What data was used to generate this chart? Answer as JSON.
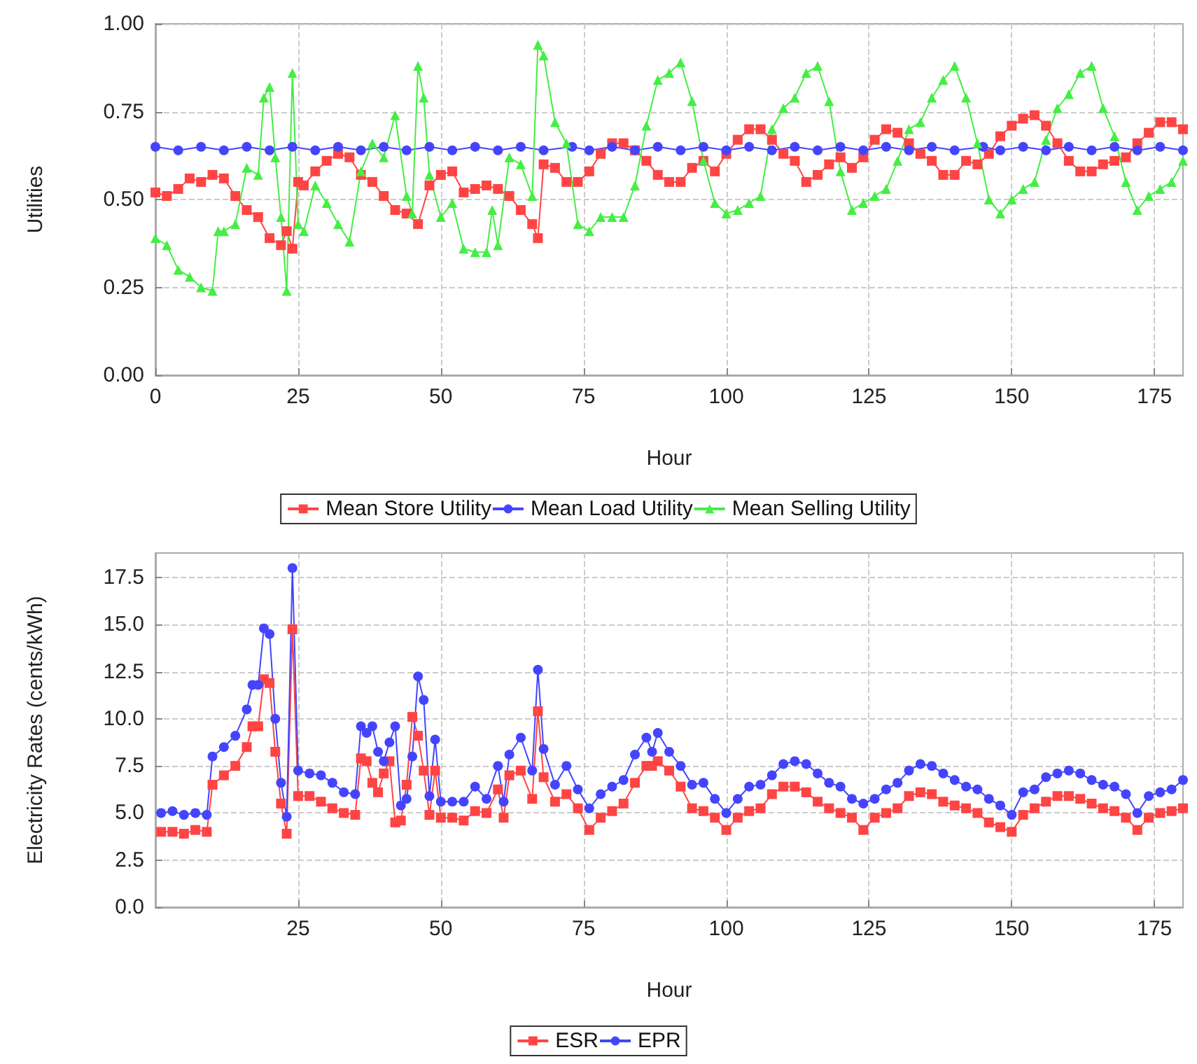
{
  "chart_data": [
    {
      "type": "line",
      "xlabel": "Hour",
      "ylabel": "Utilities",
      "xlim": [
        0,
        180
      ],
      "ylim": [
        0,
        1
      ],
      "xticks": [
        0,
        25,
        50,
        75,
        100,
        125,
        150,
        175
      ],
      "yticks": [
        {
          "value": 0,
          "label": "0.00"
        },
        0.25,
        {
          "value": 0.5,
          "label": "0.50"
        },
        0.75,
        {
          "value": 1,
          "label": "1.00"
        }
      ],
      "grid": true,
      "legend": "bottom",
      "line_style": "solid",
      "series": [
        {
          "name": "Mean Store Utility",
          "color": "#ff4444",
          "marker": "square",
          "x": [
            0,
            2,
            4,
            6,
            8,
            10,
            12,
            14,
            16,
            18,
            20,
            22,
            23,
            24,
            25,
            26,
            28,
            30,
            32,
            34,
            36,
            38,
            40,
            42,
            44,
            46,
            48,
            50,
            52,
            54,
            56,
            58,
            60,
            62,
            64,
            66,
            67,
            68,
            70,
            72,
            74,
            76,
            78,
            80,
            82,
            84,
            86,
            88,
            90,
            92,
            94,
            96,
            98,
            100,
            102,
            104,
            106,
            108,
            110,
            112,
            114,
            116,
            118,
            120,
            122,
            124,
            126,
            128,
            130,
            132,
            134,
            136,
            138,
            140,
            142,
            144,
            146,
            148,
            150,
            152,
            154,
            156,
            158,
            160,
            162,
            164,
            166,
            168,
            170,
            172,
            174,
            176,
            178,
            180
          ],
          "values": [
            0.52,
            0.51,
            0.53,
            0.56,
            0.55,
            0.57,
            0.56,
            0.51,
            0.47,
            0.45,
            0.39,
            0.37,
            0.41,
            0.36,
            0.55,
            0.54,
            0.58,
            0.61,
            0.63,
            0.62,
            0.57,
            0.55,
            0.51,
            0.47,
            0.46,
            0.43,
            0.54,
            0.57,
            0.58,
            0.52,
            0.53,
            0.54,
            0.53,
            0.51,
            0.47,
            0.43,
            0.39,
            0.6,
            0.59,
            0.55,
            0.55,
            0.58,
            0.63,
            0.66,
            0.66,
            0.64,
            0.61,
            0.57,
            0.55,
            0.55,
            0.59,
            0.61,
            0.58,
            0.63,
            0.67,
            0.7,
            0.7,
            0.67,
            0.63,
            0.61,
            0.55,
            0.57,
            0.6,
            0.62,
            0.59,
            0.62,
            0.67,
            0.7,
            0.69,
            0.66,
            0.63,
            0.61,
            0.57,
            0.57,
            0.61,
            0.6,
            0.63,
            0.68,
            0.71,
            0.73,
            0.74,
            0.71,
            0.66,
            0.61,
            0.58,
            0.58,
            0.6,
            0.61,
            0.62,
            0.66,
            0.69,
            0.72,
            0.72,
            0.7
          ]
        },
        {
          "name": "Mean Load Utility",
          "color": "#4444ff",
          "marker": "circle",
          "x": [
            0,
            4,
            8,
            12,
            16,
            20,
            24,
            28,
            32,
            36,
            40,
            44,
            48,
            52,
            56,
            60,
            64,
            68,
            73,
            76,
            80,
            84,
            88,
            92,
            96,
            100,
            104,
            108,
            112,
            116,
            120,
            124,
            128,
            132,
            136,
            140,
            145,
            148,
            152,
            156,
            160,
            164,
            168,
            172,
            176,
            180
          ],
          "values": [
            0.65,
            0.64,
            0.65,
            0.64,
            0.65,
            0.64,
            0.65,
            0.64,
            0.65,
            0.64,
            0.65,
            0.64,
            0.65,
            0.64,
            0.65,
            0.64,
            0.65,
            0.64,
            0.65,
            0.64,
            0.65,
            0.64,
            0.65,
            0.64,
            0.65,
            0.64,
            0.65,
            0.64,
            0.65,
            0.64,
            0.65,
            0.64,
            0.65,
            0.64,
            0.65,
            0.64,
            0.65,
            0.64,
            0.65,
            0.64,
            0.65,
            0.64,
            0.65,
            0.64,
            0.65,
            0.64
          ]
        },
        {
          "name": "Mean Selling Utility",
          "color": "#44ee44",
          "marker": "triangle",
          "x": [
            0,
            2,
            4,
            6,
            8,
            10,
            11,
            12,
            14,
            16,
            18,
            19,
            20,
            21,
            22,
            23,
            24,
            25,
            26,
            28,
            30,
            32,
            34,
            36,
            38,
            40,
            42,
            44,
            45,
            46,
            47,
            48,
            50,
            52,
            54,
            56,
            58,
            59,
            60,
            62,
            64,
            66,
            67,
            68,
            70,
            72,
            74,
            76,
            78,
            80,
            82,
            84,
            86,
            88,
            90,
            92,
            94,
            96,
            98,
            100,
            102,
            104,
            106,
            108,
            110,
            112,
            114,
            116,
            118,
            120,
            122,
            124,
            126,
            128,
            130,
            132,
            134,
            136,
            138,
            140,
            142,
            144,
            146,
            148,
            150,
            152,
            154,
            156,
            158,
            160,
            162,
            164,
            166,
            168,
            170,
            172,
            174,
            176,
            178,
            180
          ],
          "values": [
            0.39,
            0.37,
            0.3,
            0.28,
            0.25,
            0.24,
            0.41,
            0.41,
            0.43,
            0.59,
            0.57,
            0.79,
            0.82,
            0.62,
            0.45,
            0.24,
            0.86,
            0.43,
            0.41,
            0.54,
            0.49,
            0.43,
            0.38,
            0.58,
            0.66,
            0.62,
            0.74,
            0.51,
            0.46,
            0.88,
            0.79,
            0.57,
            0.45,
            0.49,
            0.36,
            0.35,
            0.35,
            0.47,
            0.37,
            0.62,
            0.6,
            0.51,
            0.94,
            0.91,
            0.72,
            0.66,
            0.43,
            0.41,
            0.45,
            0.45,
            0.45,
            0.54,
            0.71,
            0.84,
            0.86,
            0.89,
            0.78,
            0.61,
            0.49,
            0.46,
            0.47,
            0.49,
            0.51,
            0.7,
            0.76,
            0.79,
            0.86,
            0.88,
            0.78,
            0.58,
            0.47,
            0.49,
            0.51,
            0.53,
            0.61,
            0.7,
            0.72,
            0.79,
            0.84,
            0.88,
            0.79,
            0.66,
            0.5,
            0.46,
            0.5,
            0.53,
            0.55,
            0.67,
            0.76,
            0.8,
            0.86,
            0.88,
            0.76,
            0.68,
            0.55,
            0.47,
            0.51,
            0.53,
            0.55,
            0.61
          ]
        }
      ]
    },
    {
      "type": "line",
      "xlabel": "Hour",
      "ylabel": "Electricity Rates (cents/kWh)",
      "xlim": [
        0,
        180
      ],
      "ylim": [
        0,
        18.8
      ],
      "xticks": [
        25,
        50,
        75,
        100,
        125,
        150,
        175
      ],
      "yticks": [
        {
          "value": 0,
          "label": "0.0"
        },
        2.5,
        {
          "value": 5,
          "label": "5.0"
        },
        7.5,
        {
          "value": 10,
          "label": "10.0"
        },
        12.5,
        {
          "value": 15,
          "label": "15.0"
        },
        17.5
      ],
      "grid": true,
      "legend": "bottom",
      "line_style": "solid",
      "series": [
        {
          "name": "ESR",
          "color": "#ff4444",
          "marker": "square",
          "x": [
            1,
            3,
            5,
            7,
            9,
            10,
            12,
            14,
            16,
            17,
            18,
            19,
            20,
            21,
            22,
            23,
            24,
            25,
            27,
            29,
            31,
            33,
            35,
            36,
            37,
            38,
            39,
            40,
            41,
            42,
            43,
            44,
            45,
            46,
            47,
            48,
            49,
            50,
            52,
            54,
            56,
            58,
            60,
            61,
            62,
            64,
            66,
            67,
            68,
            70,
            72,
            74,
            76,
            78,
            80,
            82,
            84,
            86,
            87,
            88,
            90,
            92,
            94,
            96,
            98,
            100,
            102,
            104,
            106,
            108,
            110,
            112,
            114,
            116,
            118,
            120,
            122,
            124,
            126,
            128,
            130,
            132,
            134,
            136,
            138,
            140,
            142,
            144,
            146,
            148,
            150,
            152,
            154,
            156,
            158,
            160,
            162,
            164,
            166,
            168,
            170,
            172,
            174,
            176,
            178,
            180
          ],
          "values": [
            4.0,
            4.0,
            3.9,
            4.1,
            4.0,
            6.5,
            7.0,
            7.5,
            8.5,
            9.6,
            9.6,
            12.1,
            11.9,
            8.25,
            5.5,
            3.9,
            14.75,
            5.9,
            5.9,
            5.6,
            5.25,
            5.0,
            4.9,
            7.9,
            7.75,
            6.6,
            6.1,
            7.1,
            7.75,
            4.5,
            4.6,
            6.5,
            10.1,
            9.1,
            7.25,
            4.9,
            7.25,
            4.75,
            4.75,
            4.6,
            5.1,
            5.0,
            6.25,
            4.75,
            7.0,
            7.25,
            5.75,
            10.4,
            6.9,
            5.6,
            6.0,
            5.25,
            4.1,
            4.75,
            5.1,
            5.5,
            6.6,
            7.5,
            7.5,
            7.75,
            7.25,
            6.4,
            5.25,
            5.1,
            4.75,
            4.1,
            4.75,
            5.1,
            5.25,
            6.0,
            6.4,
            6.4,
            6.1,
            5.6,
            5.25,
            5.0,
            4.75,
            4.1,
            4.75,
            5.0,
            5.25,
            5.9,
            6.1,
            6.0,
            5.6,
            5.4,
            5.25,
            5.0,
            4.5,
            4.25,
            4.0,
            4.9,
            5.25,
            5.6,
            5.9,
            5.9,
            5.75,
            5.5,
            5.25,
            5.1,
            4.75,
            4.1,
            4.75,
            5.0,
            5.1,
            5.25
          ]
        },
        {
          "name": "EPR",
          "color": "#4444ff",
          "marker": "circle",
          "x": [
            1,
            3,
            5,
            7,
            9,
            10,
            12,
            14,
            16,
            17,
            18,
            19,
            20,
            21,
            22,
            23,
            24,
            25,
            27,
            29,
            31,
            33,
            35,
            36,
            37,
            38,
            39,
            40,
            41,
            42,
            43,
            44,
            45,
            46,
            47,
            48,
            49,
            50,
            52,
            54,
            56,
            58,
            60,
            61,
            62,
            64,
            66,
            67,
            68,
            70,
            72,
            74,
            76,
            78,
            80,
            82,
            84,
            86,
            87,
            88,
            90,
            92,
            94,
            96,
            98,
            100,
            102,
            104,
            106,
            108,
            110,
            112,
            114,
            116,
            118,
            120,
            122,
            124,
            126,
            128,
            130,
            132,
            134,
            136,
            138,
            140,
            142,
            144,
            146,
            148,
            150,
            152,
            154,
            156,
            158,
            160,
            162,
            164,
            166,
            168,
            170,
            172,
            174,
            176,
            178,
            180
          ],
          "values": [
            5.0,
            5.1,
            4.9,
            5.0,
            4.9,
            8.0,
            8.5,
            9.1,
            10.5,
            11.8,
            11.8,
            14.8,
            14.5,
            10.0,
            6.6,
            4.8,
            18.0,
            7.25,
            7.1,
            7.0,
            6.6,
            6.1,
            6.0,
            9.6,
            9.25,
            9.6,
            8.25,
            7.75,
            8.75,
            9.6,
            5.4,
            5.75,
            8.0,
            12.25,
            11.0,
            5.9,
            8.9,
            5.6,
            5.6,
            5.6,
            6.4,
            5.75,
            7.5,
            5.6,
            8.1,
            9.0,
            7.25,
            12.6,
            8.4,
            6.5,
            7.5,
            6.25,
            5.25,
            6.0,
            6.4,
            6.75,
            8.1,
            9.0,
            8.25,
            9.25,
            8.25,
            7.5,
            6.5,
            6.6,
            5.75,
            5.0,
            5.75,
            6.4,
            6.5,
            7.0,
            7.6,
            7.75,
            7.6,
            7.1,
            6.6,
            6.4,
            5.75,
            5.5,
            5.75,
            6.25,
            6.6,
            7.25,
            7.6,
            7.5,
            7.1,
            6.75,
            6.4,
            6.25,
            5.75,
            5.4,
            4.9,
            6.1,
            6.25,
            6.9,
            7.1,
            7.25,
            7.1,
            6.75,
            6.5,
            6.4,
            6.0,
            5.0,
            5.9,
            6.1,
            6.25,
            6.75
          ]
        }
      ]
    }
  ]
}
